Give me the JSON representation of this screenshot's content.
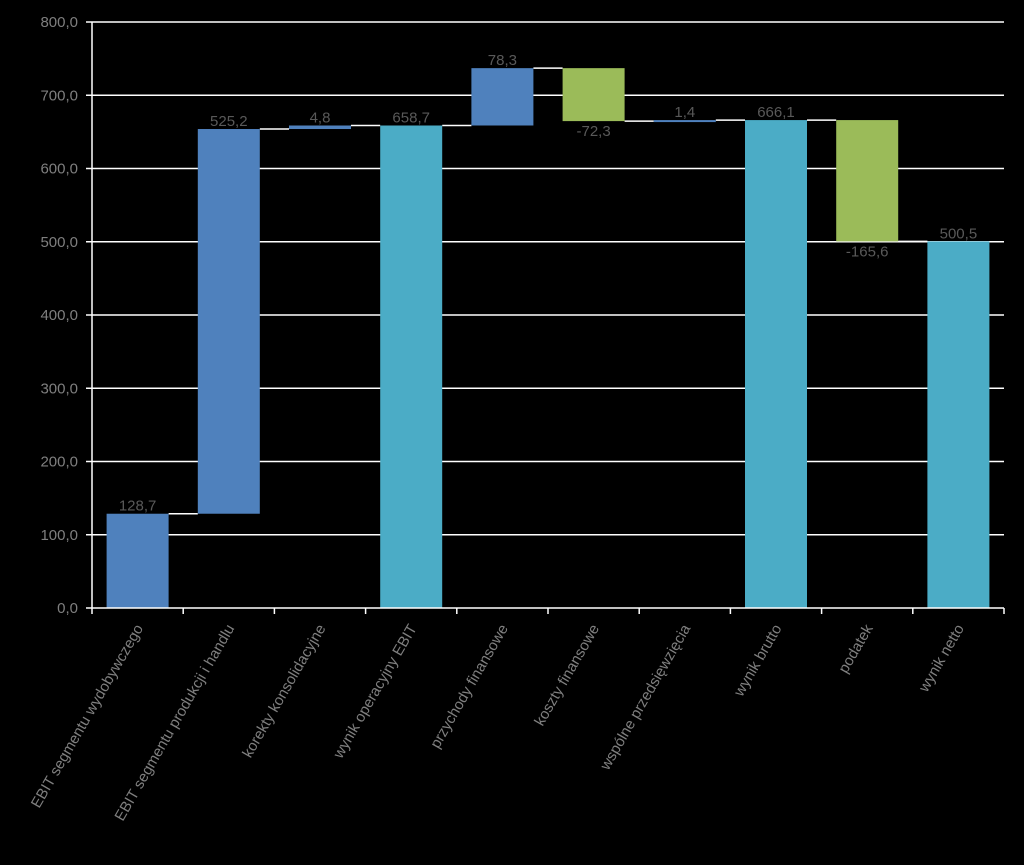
{
  "chart_data": {
    "type": "bar",
    "subtype": "waterfall",
    "title": "",
    "xlabel": "",
    "ylabel": "",
    "ylim": [
      0,
      800
    ],
    "yticks": [
      0,
      100,
      200,
      300,
      400,
      500,
      600,
      700,
      800
    ],
    "ytick_labels": [
      "0,0",
      "100,0",
      "200,0",
      "300,0",
      "400,0",
      "500,0",
      "600,0",
      "700,0",
      "800,0"
    ],
    "grid": true,
    "legend": "none",
    "categories": [
      "EBIT segmentu wydobywczego",
      "EBIT segmentu produkcji i handlu",
      "korekty konsolidacyjne",
      "wynik operacyjny EBIT",
      "przychody finansowe",
      "koszty finansowe",
      "wspólne przedsięwzięcia",
      "wynik brutto",
      "podatek",
      "wynik netto"
    ],
    "values": [
      128.7,
      525.2,
      4.8,
      658.7,
      78.3,
      -72.3,
      1.4,
      666.1,
      -165.6,
      500.5
    ],
    "value_labels": [
      "128,7",
      "525,2",
      "4,8",
      "658,7",
      "78,3",
      "-72,3",
      "1,4",
      "666,1",
      "-165,6",
      "500,5"
    ],
    "bar_kinds": [
      "increase",
      "increase",
      "increase",
      "total",
      "increase",
      "decrease",
      "increase",
      "total",
      "decrease",
      "total"
    ],
    "colors": {
      "increase": "#4f81bd",
      "decrease": "#9bbb59",
      "total": "#4bacc6",
      "grid": "#ffffff",
      "axis": "#ffffff",
      "connector": "#ffffff"
    }
  }
}
